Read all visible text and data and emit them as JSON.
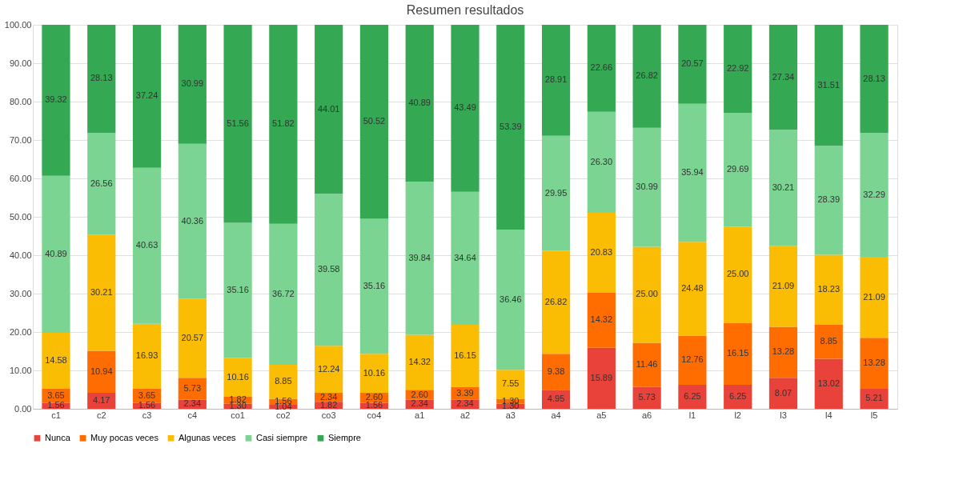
{
  "chart_data": {
    "type": "bar",
    "title": "Resumen resultados",
    "stacked": true,
    "grid": "y",
    "legend": "bottom",
    "categories": [
      "c1",
      "c2",
      "c3",
      "c4",
      "co1",
      "co2",
      "co3",
      "co4",
      "a1",
      "a2",
      "a3",
      "a4",
      "a5",
      "a6",
      "l1",
      "l2",
      "l3",
      "l4",
      "l5"
    ],
    "ylim": [
      0,
      100
    ],
    "yticks": [
      {
        "value": 0,
        "label": "0.00"
      },
      {
        "value": 10,
        "label": "10.00"
      },
      {
        "value": 20,
        "label": "20.00"
      },
      {
        "value": 30,
        "label": "30.00"
      },
      {
        "value": 40,
        "label": "40.00"
      },
      {
        "value": 50,
        "label": "50.00"
      },
      {
        "value": 60,
        "label": "60.00"
      },
      {
        "value": 70,
        "label": "70.00"
      },
      {
        "value": 80,
        "label": "80.00"
      },
      {
        "value": 90,
        "label": "90.00"
      },
      {
        "value": 100,
        "label": "100.00"
      }
    ],
    "series": [
      {
        "name": "Nunca",
        "color": "#e8423a",
        "values": [
          1.56,
          4.17,
          1.56,
          2.34,
          1.3,
          1.04,
          1.82,
          1.56,
          2.34,
          2.34,
          1.3,
          4.95,
          15.89,
          5.73,
          6.25,
          6.25,
          8.07,
          13.02,
          5.21
        ],
        "value_labels": [
          "1.56",
          "4.17",
          "1.56",
          "2.34",
          "1.30",
          "1.04",
          "1.82",
          "1.56",
          "2.34",
          "2.34",
          "1.30",
          "4.95",
          "15.89",
          "5.73",
          "6.25",
          "6.25",
          "8.07",
          "13.02",
          "5.21"
        ]
      },
      {
        "name": "Muy pocas veces",
        "color": "#ff6d01",
        "values": [
          3.65,
          10.94,
          3.65,
          5.73,
          1.82,
          1.56,
          2.34,
          2.6,
          2.6,
          3.39,
          1.3,
          9.38,
          14.32,
          11.46,
          12.76,
          16.15,
          13.28,
          8.85,
          13.28
        ],
        "value_labels": [
          "3.65",
          "10.94",
          "3.65",
          "5.73",
          "1.82",
          "1.56",
          "2.34",
          "2.60",
          "2.60",
          "3.39",
          "1.30",
          "9.38",
          "14.32",
          "11.46",
          "12.76",
          "16.15",
          "13.28",
          "8.85",
          "13.28"
        ]
      },
      {
        "name": "Algunas veces",
        "color": "#fbbc04",
        "values": [
          14.58,
          30.21,
          16.93,
          20.57,
          10.16,
          8.85,
          12.24,
          10.16,
          14.32,
          16.15,
          7.55,
          26.82,
          20.83,
          25.0,
          24.48,
          25.0,
          21.09,
          18.23,
          21.09
        ],
        "value_labels": [
          "14.58",
          "30.21",
          "16.93",
          "20.57",
          "10.16",
          "8.85",
          "12.24",
          "10.16",
          "14.32",
          "16.15",
          "7.55",
          "26.82",
          "20.83",
          "25.00",
          "24.48",
          "25.00",
          "21.09",
          "18.23",
          "21.09"
        ]
      },
      {
        "name": "Casi siempre",
        "color": "#7bd492",
        "values": [
          40.89,
          26.56,
          40.63,
          40.36,
          35.16,
          36.72,
          39.58,
          35.16,
          39.84,
          34.64,
          36.46,
          29.95,
          26.3,
          30.99,
          35.94,
          29.69,
          30.21,
          28.39,
          32.29
        ],
        "value_labels": [
          "40.89",
          "26.56",
          "40.63",
          "40.36",
          "35.16",
          "36.72",
          "39.58",
          "35.16",
          "39.84",
          "34.64",
          "36.46",
          "29.95",
          "26.30",
          "30.99",
          "35.94",
          "29.69",
          "30.21",
          "28.39",
          "32.29"
        ]
      },
      {
        "name": "Siempre",
        "color": "#34a853",
        "values": [
          39.32,
          28.13,
          37.24,
          30.99,
          51.56,
          51.82,
          44.01,
          50.52,
          40.89,
          43.49,
          53.39,
          28.91,
          22.66,
          26.82,
          20.57,
          22.92,
          27.34,
          31.51,
          28.13
        ],
        "value_labels": [
          "39.32",
          "28.13",
          "37.24",
          "30.99",
          "51.56",
          "51.82",
          "44.01",
          "50.52",
          "40.89",
          "43.49",
          "53.39",
          "28.91",
          "22.66",
          "26.82",
          "20.57",
          "22.92",
          "27.34",
          "31.51",
          "28.13"
        ]
      }
    ]
  }
}
